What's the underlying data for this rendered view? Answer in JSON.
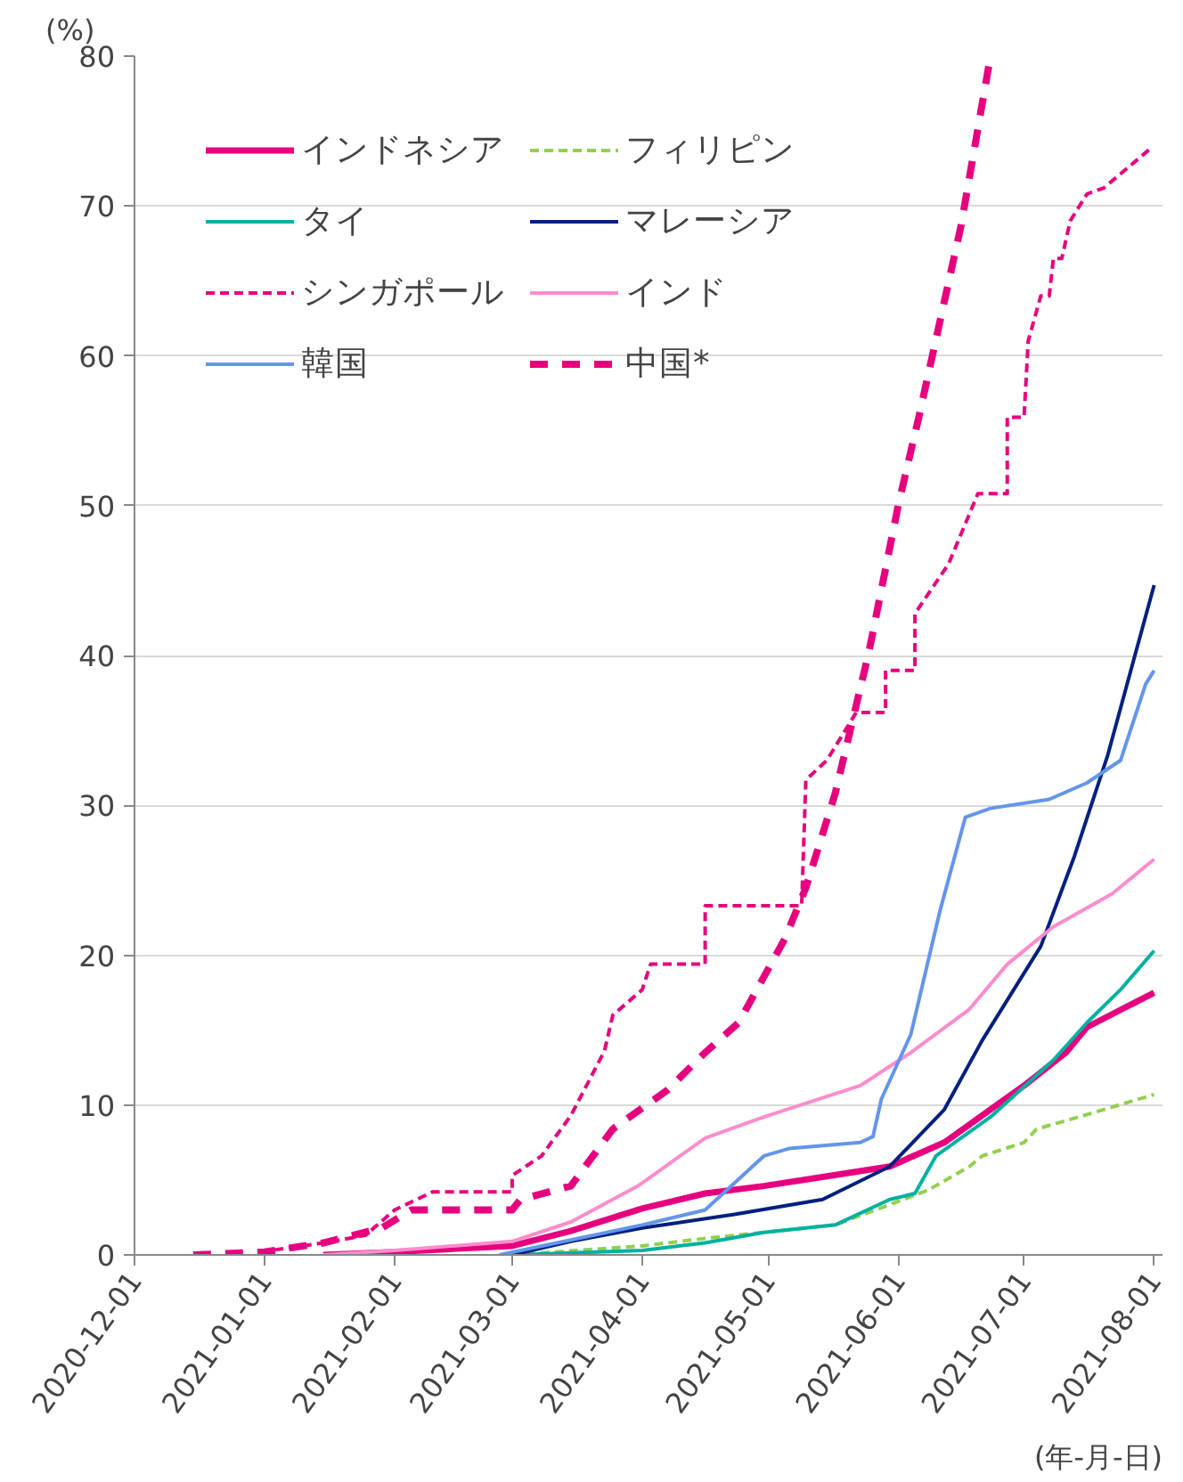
{
  "chart_data": {
    "type": "line",
    "ylabel": "(%)",
    "xlabel": "(年-月-日)",
    "xlim": [
      "2020-12-01",
      "2021-08-03"
    ],
    "xticks": [
      "2020-12-01",
      "2021-01-01",
      "2021-02-01",
      "2021-03-01",
      "2021-04-01",
      "2021-05-01",
      "2021-06-01",
      "2021-07-01",
      "2021-08-01"
    ],
    "ylim": [
      0,
      80
    ],
    "yticks": [
      0,
      10,
      20,
      30,
      40,
      50,
      60,
      70,
      80
    ],
    "grid": "y",
    "legend": "top left",
    "series": [
      {
        "name": "インドネシア",
        "color": "#e6007e",
        "line_style": "solid",
        "x": [
          "2021-01-15",
          "2021-02-01",
          "2021-03-01",
          "2021-03-15",
          "2021-04-01",
          "2021-04-16",
          "2021-04-30",
          "2021-05-14",
          "2021-05-30",
          "2021-06-12",
          "2021-07-01",
          "2021-07-11",
          "2021-07-16",
          "2021-08-01"
        ],
        "values": [
          0,
          0.2,
          0.6,
          1.6,
          3.1,
          4.1,
          4.6,
          5.2,
          5.9,
          7.5,
          11.3,
          13.5,
          15.2,
          17.5
        ]
      },
      {
        "name": "フィリピン",
        "color": "#92d050",
        "line_style": "dashed",
        "x": [
          "2021-03-01",
          "2021-04-01",
          "2021-04-16",
          "2021-05-17",
          "2021-06-08",
          "2021-06-18",
          "2021-06-21",
          "2021-07-01",
          "2021-07-04",
          "2021-07-14",
          "2021-08-01"
        ],
        "values": [
          0,
          0.6,
          1.1,
          2.0,
          4.3,
          5.9,
          6.6,
          7.5,
          8.4,
          9.2,
          10.7
        ]
      },
      {
        "name": "タイ",
        "color": "#00b0a0",
        "line_style": "solid",
        "x": [
          "2021-03-01",
          "2021-04-01",
          "2021-04-16",
          "2021-04-30",
          "2021-05-17",
          "2021-05-30",
          "2021-06-05",
          "2021-06-10",
          "2021-06-23",
          "2021-07-08",
          "2021-07-16",
          "2021-07-24",
          "2021-08-01"
        ],
        "values": [
          0,
          0.3,
          0.8,
          1.5,
          2.0,
          3.7,
          4.1,
          6.6,
          9.2,
          13,
          15.5,
          17.7,
          20.3
        ]
      },
      {
        "name": "マレーシア",
        "color": "#002080",
        "line_style": "solid",
        "x": [
          "2021-03-01",
          "2021-03-15",
          "2021-04-01",
          "2021-04-23",
          "2021-05-14",
          "2021-05-30",
          "2021-06-12",
          "2021-06-21",
          "2021-07-05",
          "2021-07-13",
          "2021-07-21",
          "2021-07-28",
          "2021-08-01"
        ],
        "values": [
          0,
          0.9,
          1.8,
          2.7,
          3.7,
          5.9,
          9.7,
          14.3,
          20.6,
          26.6,
          33.4,
          40.6,
          44.7
        ]
      },
      {
        "name": "シンガポール",
        "color": "#e6007e",
        "line_style": "dotted",
        "x": [
          "2020-12-31",
          "2021-01-15",
          "2021-01-25",
          "2021-02-01",
          "2021-02-10",
          "2021-03-01",
          "2021-03-01",
          "2021-03-08",
          "2021-03-15",
          "2021-03-23",
          "2021-03-25",
          "2021-04-01",
          "2021-04-03",
          "2021-04-16",
          "2021-04-16",
          "2021-05-09",
          "2021-05-10",
          "2021-05-15",
          "2021-05-22",
          "2021-05-29",
          "2021-05-29",
          "2021-06-05",
          "2021-06-05",
          "2021-06-13",
          "2021-06-20",
          "2021-06-27",
          "2021-06-27",
          "2021-07-01",
          "2021-07-02",
          "2021-07-05",
          "2021-07-07",
          "2021-07-08",
          "2021-07-10",
          "2021-07-12",
          "2021-07-16",
          "2021-07-20",
          "2021-07-31"
        ],
        "values": [
          0.2,
          0.8,
          1.3,
          3.0,
          4.2,
          4.2,
          5.3,
          6.6,
          9.3,
          13.6,
          16,
          17.7,
          19.4,
          19.4,
          23.3,
          23.3,
          31.7,
          33,
          36.2,
          36.2,
          39,
          39,
          42.8,
          46.1,
          50.8,
          50.8,
          55.9,
          55.9,
          61,
          64,
          64,
          66.5,
          66.5,
          69,
          70.8,
          71.2,
          73.8
        ]
      },
      {
        "name": "インド",
        "color": "#ff8ccc",
        "line_style": "solid",
        "x": [
          "2021-01-15",
          "2021-02-01",
          "2021-03-01",
          "2021-03-15",
          "2021-03-31",
          "2021-04-16",
          "2021-04-30",
          "2021-05-23",
          "2021-06-04",
          "2021-06-18",
          "2021-06-27",
          "2021-07-08",
          "2021-07-22",
          "2021-08-01"
        ],
        "values": [
          0,
          0.3,
          0.9,
          2.2,
          4.6,
          7.8,
          9.2,
          11.3,
          13.5,
          16.4,
          19.4,
          21.9,
          24.1,
          26.4
        ]
      },
      {
        "name": "韓国",
        "color": "#6495ed",
        "line_style": "solid",
        "x": [
          "2021-02-26",
          "2021-03-15",
          "2021-04-01",
          "2021-04-16",
          "2021-04-30",
          "2021-05-06",
          "2021-05-23",
          "2021-05-26",
          "2021-05-28",
          "2021-06-04",
          "2021-06-11",
          "2021-06-17",
          "2021-06-23",
          "2021-07-07",
          "2021-07-16",
          "2021-07-24",
          "2021-07-30",
          "2021-08-01"
        ],
        "values": [
          0,
          1,
          2.0,
          3.0,
          6.6,
          7.1,
          7.5,
          7.9,
          10.4,
          14.7,
          23,
          29.2,
          29.8,
          30.4,
          31.5,
          33,
          38.1,
          39
        ]
      },
      {
        "name": "中国*",
        "color": "#e6007e",
        "line_style": "dashed",
        "x": [
          "2020-12-15",
          "2021-01-01",
          "2021-01-15",
          "2021-01-29",
          "2021-02-05",
          "2021-03-01",
          "2021-03-03",
          "2021-03-15",
          "2021-03-25",
          "2021-04-07",
          "2021-04-16",
          "2021-04-24",
          "2021-05-05",
          "2021-05-10",
          "2021-05-17",
          "2021-05-25",
          "2021-06-01",
          "2021-06-06",
          "2021-06-16",
          "2021-06-23"
        ],
        "values": [
          0,
          0.2,
          0.8,
          1.8,
          3.0,
          3.0,
          3.7,
          4.6,
          8.4,
          11,
          13.5,
          15.5,
          21.1,
          24.5,
          30.8,
          40.2,
          50,
          56,
          68.7,
          80
        ]
      }
    ]
  }
}
